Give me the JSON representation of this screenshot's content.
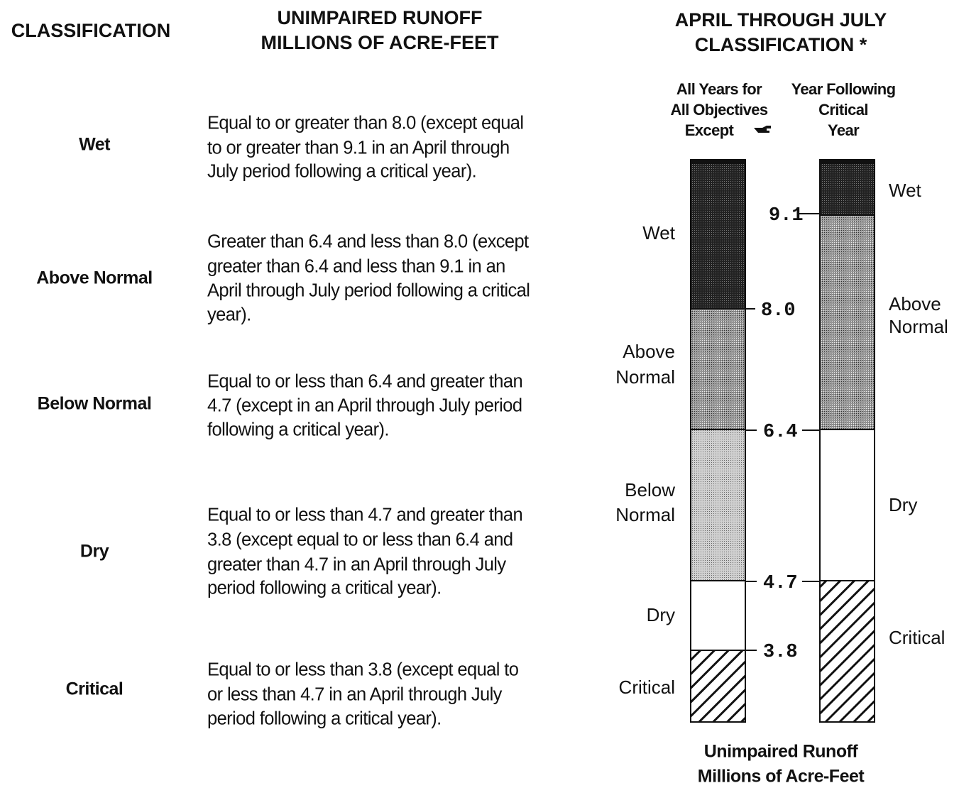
{
  "header": {
    "classification": "CLASSIFICATION",
    "runoff": [
      "UNIMPAIRED RUNOFF",
      "MILLIONS OF ACRE-FEET"
    ],
    "diagram": [
      "APRIL THROUGH JULY",
      "CLASSIFICATION *"
    ]
  },
  "rows": [
    {
      "classification": "Wet",
      "description": [
        "Equal to or greater than 8.0 (except equal",
        "to or greater than 9.1 in an April through",
        "July period following a critical year)."
      ]
    },
    {
      "classification": "Above Normal",
      "description": [
        "Greater than 6.4 and less than 8.0 (except",
        "greater than 6.4 and less than 9.1 in an",
        "April through July period following a critical",
        "year)."
      ]
    },
    {
      "classification": "Below Normal",
      "description": [
        "Equal to or less than 6.4 and greater than",
        "4.7 (except in an April through July period",
        "following a critical year)."
      ]
    },
    {
      "classification": "Dry",
      "description": [
        "Equal to or less than 4.7 and greater than",
        "3.8 (except equal to or less than 6.4 and",
        "greater than 4.7 in an April through July",
        "period following a critical year)."
      ]
    },
    {
      "classification": "Critical",
      "description": [
        "Equal to or less than 3.8 (except equal to",
        "or less than 4.7 in an April through July",
        "period following a critical year)."
      ]
    }
  ],
  "diagram": {
    "columns": [
      {
        "heading": [
          "All Years for",
          "All Objectives",
          "Except"
        ],
        "segments": [
          "Wet",
          "Above Normal",
          "Below Normal",
          "Dry",
          "Critical"
        ]
      },
      {
        "heading": [
          "Year Following",
          "Critical",
          "Year"
        ],
        "segments": [
          "Wet",
          "Above Normal",
          "Dry",
          "Critical"
        ]
      }
    ],
    "thresholds": [
      "9.1",
      "8.0",
      "6.4",
      "4.7",
      "3.8"
    ],
    "axis_label": [
      "Unimpaired Runoff",
      "Millions of Acre-Feet"
    ]
  }
}
